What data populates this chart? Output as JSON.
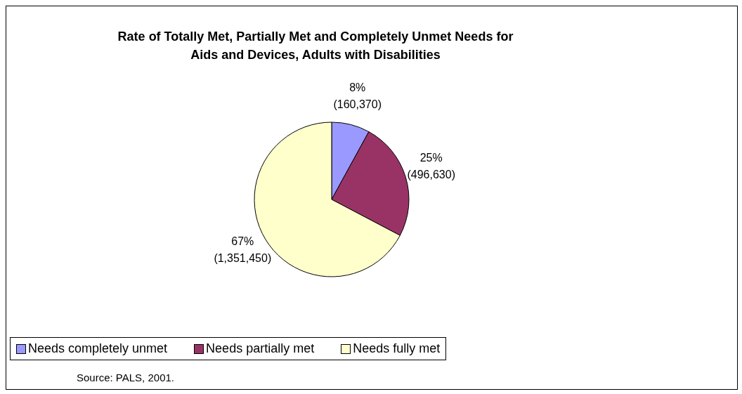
{
  "chart_data": {
    "type": "pie",
    "title": "Rate of Totally Met, Partially Met and Completely Unmet Needs for\nAids and Devices, Adults with Disabilities",
    "categories": [
      "Needs completely unmet",
      "Needs partially met",
      "Needs fully met"
    ],
    "values": [
      160370,
      496630,
      1351450
    ],
    "colors": [
      "#9999ff",
      "#993366",
      "#ffffcc"
    ],
    "value_labels": [
      "8% (160,370)",
      "25% (496,630)",
      "67% (1,351,450)"
    ],
    "legend": "bottom",
    "annotations": [
      "Source: PALS, 2001."
    ]
  }
}
